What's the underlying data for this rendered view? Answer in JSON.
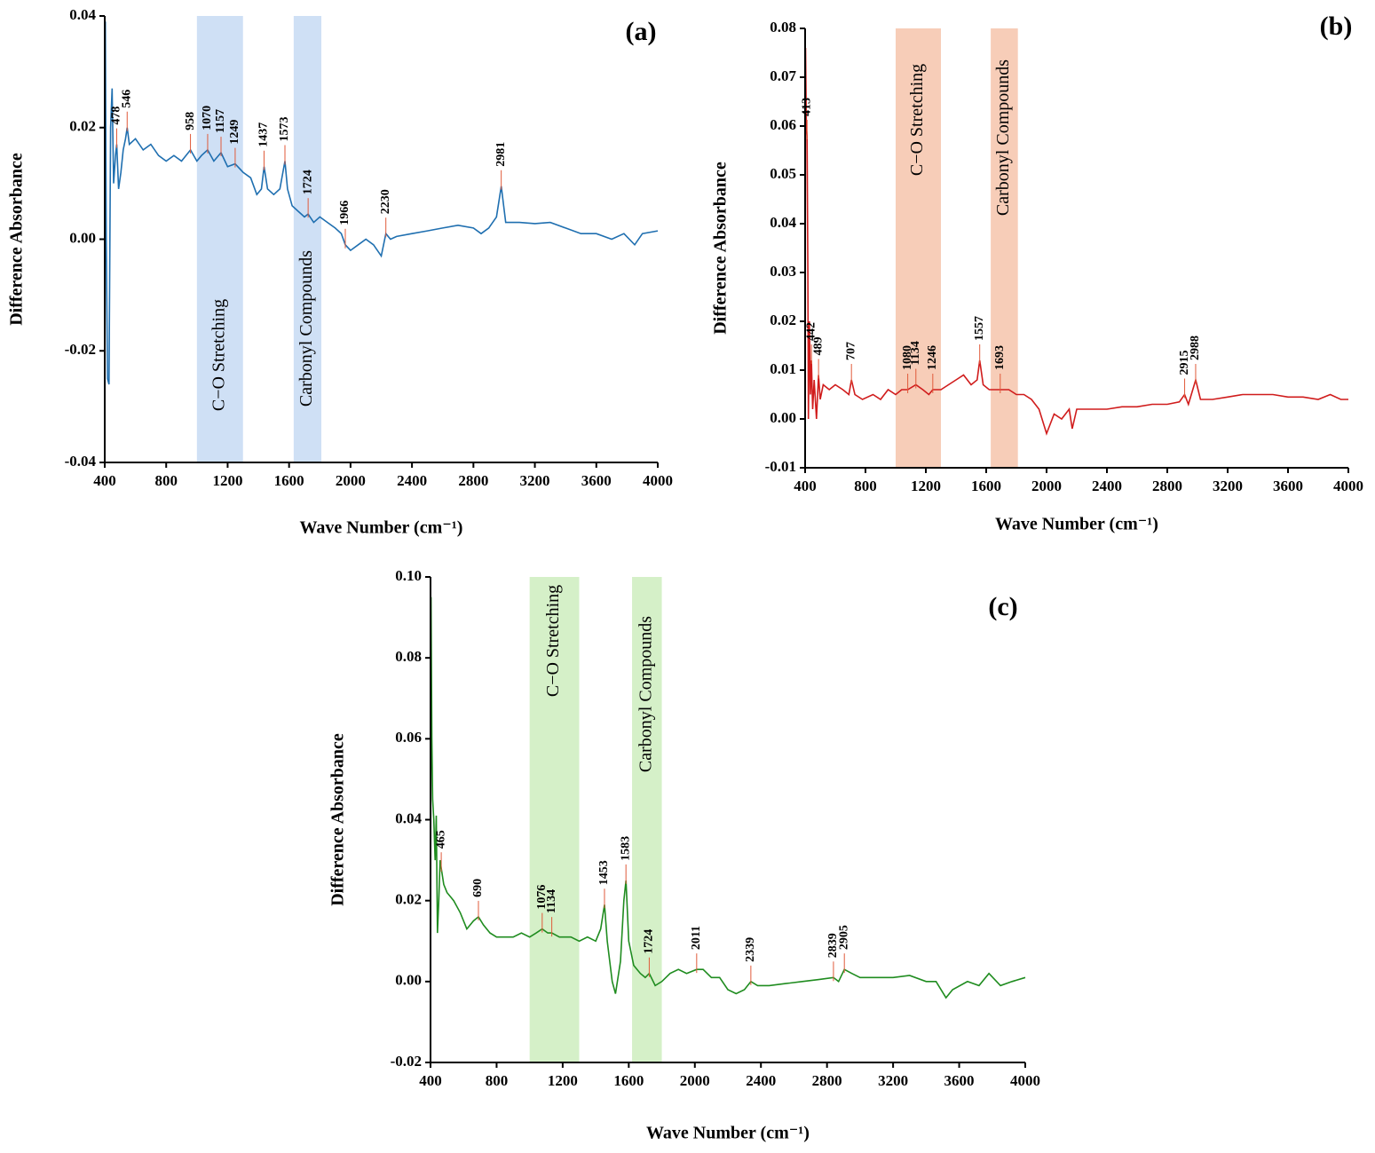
{
  "chart_data": [
    {
      "type": "line",
      "label": "(a)",
      "x_label": "Wave Number (cm⁻¹)",
      "y_label": "Difference Absorbance",
      "color": "#1f6fb0",
      "band_color": "#cfe0f5",
      "xlim": [
        400,
        4000
      ],
      "xticks": [
        400,
        800,
        1200,
        1600,
        2000,
        2400,
        2800,
        3200,
        3600,
        4000
      ],
      "ylim": [
        -0.04,
        0.04
      ],
      "yticks": [
        -0.04,
        -0.02,
        {
          "value": 0,
          "label": "0.00"
        },
        0.02,
        0.04
      ],
      "bands": [
        {
          "x": [
            1000,
            1300
          ],
          "label": "C−O Stretching"
        },
        {
          "x": [
            1630,
            1810
          ],
          "label": "Carbonyl Compounds"
        }
      ],
      "peaks": [
        478,
        546,
        958,
        1070,
        1157,
        1249,
        1437,
        1573,
        1724,
        1966,
        2230,
        2981
      ],
      "x": [
        400,
        404,
        410,
        418,
        428,
        438,
        448,
        458,
        470,
        478,
        490,
        505,
        520,
        535,
        546,
        560,
        600,
        650,
        700,
        750,
        800,
        850,
        900,
        958,
        1000,
        1030,
        1070,
        1110,
        1157,
        1200,
        1249,
        1300,
        1350,
        1390,
        1420,
        1437,
        1460,
        1500,
        1540,
        1560,
        1573,
        1590,
        1620,
        1660,
        1700,
        1724,
        1760,
        1800,
        1850,
        1900,
        1940,
        1966,
        2000,
        2050,
        2100,
        2150,
        2200,
        2230,
        2260,
        2300,
        2400,
        2500,
        2600,
        2700,
        2800,
        2850,
        2900,
        2950,
        2981,
        3010,
        3100,
        3200,
        3300,
        3400,
        3500,
        3600,
        3700,
        3780,
        3850,
        3900,
        4000
      ],
      "values": [
        -0.04,
        0.039,
        0.0,
        -0.025,
        -0.026,
        0.02,
        0.027,
        0.01,
        0.015,
        0.017,
        0.009,
        0.012,
        0.016,
        0.018,
        0.02,
        0.017,
        0.018,
        0.016,
        0.017,
        0.015,
        0.014,
        0.015,
        0.014,
        0.016,
        0.014,
        0.015,
        0.016,
        0.014,
        0.0155,
        0.013,
        0.0135,
        0.012,
        0.011,
        0.008,
        0.009,
        0.013,
        0.009,
        0.008,
        0.009,
        0.012,
        0.014,
        0.009,
        0.006,
        0.005,
        0.004,
        0.0045,
        0.003,
        0.004,
        0.003,
        0.002,
        0.001,
        -0.001,
        -0.002,
        -0.001,
        0.0,
        -0.001,
        -0.003,
        0.001,
        0.0,
        0.0005,
        0.001,
        0.0015,
        0.002,
        0.0025,
        0.002,
        0.001,
        0.002,
        0.004,
        0.0095,
        0.003,
        0.003,
        0.0028,
        0.003,
        0.002,
        0.001,
        0.001,
        0.0,
        0.001,
        -0.001,
        0.001,
        0.0015
      ]
    },
    {
      "type": "line",
      "label": "(b)",
      "x_label": "Wave Number (cm⁻¹)",
      "y_label": "Difference Absorbance",
      "color": "#d01c1c",
      "band_color": "#f7cdb8",
      "xlim": [
        400,
        4000
      ],
      "xticks": [
        400,
        800,
        1200,
        1600,
        2000,
        2400,
        2800,
        3200,
        3600,
        4000
      ],
      "ylim": [
        -0.01,
        0.08
      ],
      "yticks": [
        -0.01,
        {
          "value": 0,
          "label": "0.00"
        },
        0.01,
        0.02,
        0.03,
        0.04,
        0.05,
        0.06,
        0.07,
        0.08
      ],
      "bands": [
        {
          "x": [
            1000,
            1300
          ],
          "label": "C−O Stretching"
        },
        {
          "x": [
            1630,
            1810
          ],
          "label": "Carbonyl Compounds"
        }
      ],
      "peaks": [
        413,
        442,
        489,
        707,
        1080,
        1134,
        1246,
        1557,
        1693,
        2915,
        2988
      ],
      "x": [
        400,
        403,
        408,
        413,
        418,
        422,
        428,
        435,
        442,
        450,
        460,
        475,
        489,
        500,
        520,
        560,
        600,
        650,
        690,
        707,
        730,
        780,
        850,
        900,
        950,
        1000,
        1040,
        1080,
        1134,
        1180,
        1220,
        1246,
        1300,
        1350,
        1400,
        1450,
        1500,
        1540,
        1557,
        1580,
        1620,
        1693,
        1750,
        1800,
        1850,
        1900,
        1950,
        2000,
        2050,
        2100,
        2150,
        2170,
        2200,
        2300,
        2400,
        2500,
        2600,
        2700,
        2800,
        2880,
        2915,
        2940,
        2988,
        3020,
        3100,
        3200,
        3300,
        3400,
        3500,
        3600,
        3700,
        3800,
        3880,
        3950,
        4000
      ],
      "values": [
        0.0,
        0.076,
        0.06,
        0.058,
        0.03,
        0.0,
        0.02,
        0.005,
        0.012,
        0.002,
        0.008,
        0.0,
        0.009,
        0.004,
        0.007,
        0.006,
        0.007,
        0.006,
        0.005,
        0.008,
        0.005,
        0.004,
        0.005,
        0.004,
        0.006,
        0.005,
        0.006,
        0.006,
        0.007,
        0.006,
        0.005,
        0.006,
        0.006,
        0.007,
        0.008,
        0.009,
        0.007,
        0.008,
        0.012,
        0.007,
        0.006,
        0.006,
        0.006,
        0.005,
        0.005,
        0.004,
        0.002,
        -0.003,
        0.001,
        0.0,
        0.002,
        -0.002,
        0.002,
        0.002,
        0.002,
        0.0025,
        0.0025,
        0.003,
        0.003,
        0.0035,
        0.005,
        0.003,
        0.008,
        0.004,
        0.004,
        0.0045,
        0.005,
        0.005,
        0.005,
        0.0045,
        0.0045,
        0.004,
        0.005,
        0.004,
        0.004
      ]
    },
    {
      "type": "line",
      "label": "(c)",
      "x_label": "Wave Number (cm⁻¹)",
      "y_label": "Difference Absorbance",
      "color": "#1f8c1f",
      "band_color": "#d5f0c8",
      "xlim": [
        400,
        4000
      ],
      "xticks": [
        400,
        800,
        1200,
        1600,
        2000,
        2400,
        2800,
        3200,
        3600,
        4000
      ],
      "ylim": [
        -0.02,
        0.1
      ],
      "yticks": [
        -0.02,
        {
          "value": 0,
          "label": "0.00"
        },
        0.02,
        0.04,
        0.06,
        0.08,
        {
          "value": 0.1,
          "label": "0.10"
        }
      ],
      "bands": [
        {
          "x": [
            1000,
            1300
          ],
          "label": "C−O Stretching"
        },
        {
          "x": [
            1620,
            1800
          ],
          "label": "Carbonyl Compounds"
        }
      ],
      "peaks": [
        465,
        690,
        1076,
        1134,
        1453,
        1583,
        1724,
        2011,
        2339,
        2839,
        2905
      ],
      "x": [
        400,
        403,
        408,
        413,
        420,
        428,
        435,
        442,
        450,
        458,
        465,
        480,
        500,
        540,
        580,
        620,
        660,
        690,
        720,
        760,
        800,
        850,
        900,
        950,
        1000,
        1040,
        1076,
        1110,
        1134,
        1180,
        1250,
        1300,
        1350,
        1400,
        1430,
        1453,
        1470,
        1500,
        1520,
        1550,
        1570,
        1583,
        1600,
        1630,
        1670,
        1700,
        1724,
        1760,
        1800,
        1850,
        1900,
        1950,
        2011,
        2050,
        2100,
        2150,
        2200,
        2250,
        2300,
        2339,
        2380,
        2450,
        2550,
        2650,
        2750,
        2839,
        2870,
        2905,
        2950,
        3000,
        3100,
        3200,
        3300,
        3400,
        3460,
        3520,
        3560,
        3650,
        3720,
        3780,
        3850,
        3920,
        4000
      ],
      "values": [
        0.0,
        0.095,
        0.06,
        0.045,
        0.04,
        0.03,
        0.041,
        0.012,
        0.02,
        0.03,
        0.028,
        0.024,
        0.022,
        0.02,
        0.017,
        0.013,
        0.015,
        0.016,
        0.014,
        0.012,
        0.011,
        0.011,
        0.011,
        0.012,
        0.011,
        0.012,
        0.013,
        0.012,
        0.012,
        0.011,
        0.011,
        0.01,
        0.011,
        0.01,
        0.013,
        0.019,
        0.01,
        0.0,
        -0.003,
        0.005,
        0.02,
        0.025,
        0.01,
        0.004,
        0.002,
        0.001,
        0.002,
        -0.001,
        0.0,
        0.002,
        0.003,
        0.002,
        0.003,
        0.003,
        0.001,
        0.001,
        -0.002,
        -0.003,
        -0.002,
        0.0,
        -0.001,
        -0.001,
        -0.0005,
        0.0,
        0.0005,
        0.001,
        0.0,
        0.003,
        0.002,
        0.001,
        0.001,
        0.001,
        0.0015,
        0.0,
        0.0,
        -0.004,
        -0.002,
        0.0,
        -0.001,
        0.002,
        -0.001,
        0.0,
        0.001
      ]
    }
  ]
}
